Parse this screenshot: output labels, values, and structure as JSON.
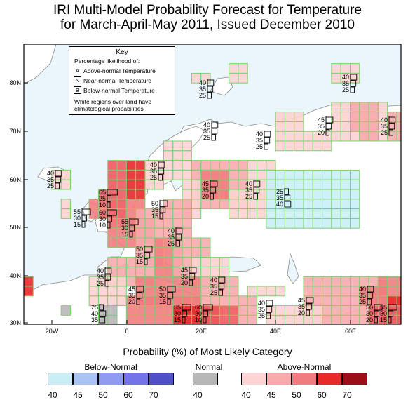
{
  "title": {
    "line1": "IRI Multi-Model Probability Forecast for Temperature",
    "line2": "for March-April-May 2011, Issued December 2010"
  },
  "map": {
    "lat_labels": [
      "80N",
      "70N",
      "60N",
      "50N",
      "40N",
      "30N"
    ],
    "lon_labels": [
      "20W",
      "0",
      "20E",
      "40E",
      "60E"
    ],
    "colors": {
      "ocean": "#eaf6fb",
      "land": "#ffffff",
      "border": "#8a8a8a",
      "grid_outline": "#7fcf6f",
      "an40": "#fdd3d3",
      "an45": "#f8aaad",
      "an50": "#f17c80",
      "an55": "#ee5a60",
      "an60": "#e82a2a",
      "bn40": "#c9eef6",
      "normal": "#b7b7b7"
    }
  },
  "key": {
    "title": "Key",
    "subtitle": "Percentage likelihood of:",
    "rows": [
      {
        "letter": "A",
        "text": "Above-normal Temperature"
      },
      {
        "letter": "N",
        "text": "Near-normal Temperature"
      },
      {
        "letter": "B",
        "text": "Below-normal Temperature"
      }
    ],
    "note1": "White regions over land have",
    "note2": "climatological probabilities"
  },
  "annotations": [
    {
      "id": "svalbard",
      "A": "40",
      "N": "35",
      "B": "25"
    },
    {
      "id": "greenland-sea",
      "A": "40",
      "N": "35",
      "B": "25"
    },
    {
      "id": "kola",
      "A": "45",
      "N": "35",
      "B": "20"
    },
    {
      "id": "east-arctic",
      "A": "40",
      "N": "35",
      "B": "25"
    },
    {
      "id": "scandinavia",
      "A": "40",
      "N": "35",
      "B": "25"
    },
    {
      "id": "barents",
      "A": "40",
      "N": "35",
      "B": "25"
    },
    {
      "id": "atlantic-west",
      "A": "40",
      "N": "35",
      "B": "25"
    },
    {
      "id": "north-sea",
      "A": "40",
      "N": "35",
      "B": "25"
    },
    {
      "id": "baltic",
      "A": "45",
      "N": "35",
      "B": "20"
    },
    {
      "id": "volga",
      "A": "40",
      "N": "35",
      "B": "25"
    },
    {
      "id": "ural-bn",
      "A": "25",
      "N": "35",
      "B": "40"
    },
    {
      "id": "uk",
      "A": "65",
      "N": "25",
      "B": "10"
    },
    {
      "id": "ireland",
      "A": "55",
      "N": "30",
      "B": "15"
    },
    {
      "id": "channel",
      "A": "60",
      "N": "30",
      "B": "10"
    },
    {
      "id": "france",
      "A": "55",
      "N": "30",
      "B": "15"
    },
    {
      "id": "germany",
      "A": "50",
      "N": "35",
      "B": "15"
    },
    {
      "id": "alps",
      "A": "40",
      "N": "35",
      "B": "25"
    },
    {
      "id": "italy",
      "A": "50",
      "N": "35",
      "B": "15"
    },
    {
      "id": "iberia",
      "A": "40",
      "N": "35",
      "B": "25"
    },
    {
      "id": "balkans",
      "A": "45",
      "N": "35",
      "B": "20"
    },
    {
      "id": "aegean",
      "A": "40",
      "N": "35",
      "B": "25"
    },
    {
      "id": "algeria",
      "A": "45",
      "N": "35",
      "B": "20"
    },
    {
      "id": "tunisia",
      "A": "50",
      "N": "35",
      "B": "15"
    },
    {
      "id": "libya",
      "A": "55",
      "N": "30",
      "B": "15"
    },
    {
      "id": "egypt",
      "A": "60",
      "N": "30",
      "B": "10"
    },
    {
      "id": "morocco",
      "A": "25",
      "N": "40",
      "B": "35"
    },
    {
      "id": "arabia",
      "A": "40",
      "N": "35",
      "B": "25"
    },
    {
      "id": "iran",
      "A": "45",
      "N": "35",
      "B": "20"
    },
    {
      "id": "afghan",
      "A": "40",
      "N": "35",
      "B": "25"
    },
    {
      "id": "pakistan",
      "A": "50",
      "N": "30",
      "B": "20"
    },
    {
      "id": "india",
      "A": "55",
      "N": "30",
      "B": "15"
    }
  ],
  "legend": {
    "title": "Probability (%) of Most Likely Category",
    "below_title": "Below-Normal",
    "normal_title": "Normal",
    "above_title": "Above-Normal",
    "below_ticks": [
      "40",
      "45",
      "50",
      "60",
      "70"
    ],
    "normal_ticks": [
      "40"
    ],
    "above_ticks": [
      "40",
      "45",
      "50",
      "60",
      "70"
    ],
    "below_colors": [
      "#c9eef6",
      "#a9c4f4",
      "#8f9bf0",
      "#7474e6",
      "#4f4fc8"
    ],
    "normal_colors": [
      "#b7b7b7"
    ],
    "above_colors": [
      "#fdd3d3",
      "#f8aaad",
      "#f17c80",
      "#e82a2a",
      "#9b1018"
    ]
  }
}
